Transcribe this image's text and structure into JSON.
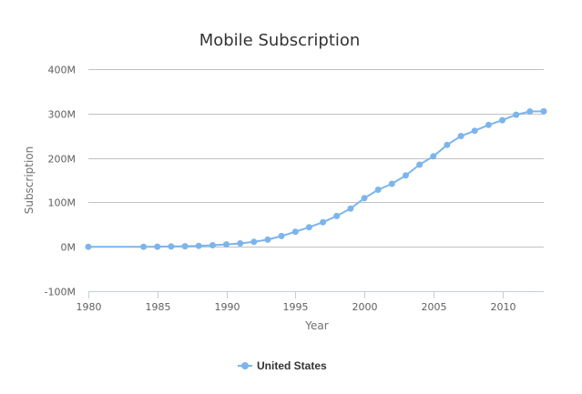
{
  "chart_data": {
    "type": "line",
    "title": "Mobile Subscription",
    "xlabel": "Year",
    "ylabel": "Subscription",
    "xlim": [
      1980,
      2013
    ],
    "ylim": [
      -100000000,
      400000000
    ],
    "x_ticks": [
      1980,
      1985,
      1990,
      1995,
      2000,
      2005,
      2010
    ],
    "y_ticks": [
      -100000000,
      0,
      100000000,
      200000000,
      300000000,
      400000000
    ],
    "y_tick_labels": [
      "-100M",
      "0M",
      "100M",
      "200M",
      "300M",
      "400M"
    ],
    "grid": true,
    "legend_position": "bottom-center",
    "series": [
      {
        "name": "United States",
        "color": "#7cb5ec",
        "x": [
          1980,
          1984,
          1985,
          1986,
          1987,
          1988,
          1989,
          1990,
          1991,
          1992,
          1993,
          1994,
          1995,
          1996,
          1997,
          1998,
          1999,
          2000,
          2001,
          2002,
          2003,
          2004,
          2005,
          2006,
          2007,
          2008,
          2009,
          2010,
          2011,
          2012,
          2013
        ],
        "values": [
          0,
          100000,
          300000,
          700000,
          1200000,
          2100000,
          3500000,
          5300000,
          7600000,
          11000000,
          16000000,
          24100000,
          33800000,
          44000000,
          55300000,
          69200000,
          86000000,
          109500000,
          128400000,
          141800000,
          160600000,
          184800000,
          203700000,
          229600000,
          249300000,
          261300000,
          274300000,
          285100000,
          297400000,
          304800000,
          305000000
        ]
      }
    ]
  }
}
